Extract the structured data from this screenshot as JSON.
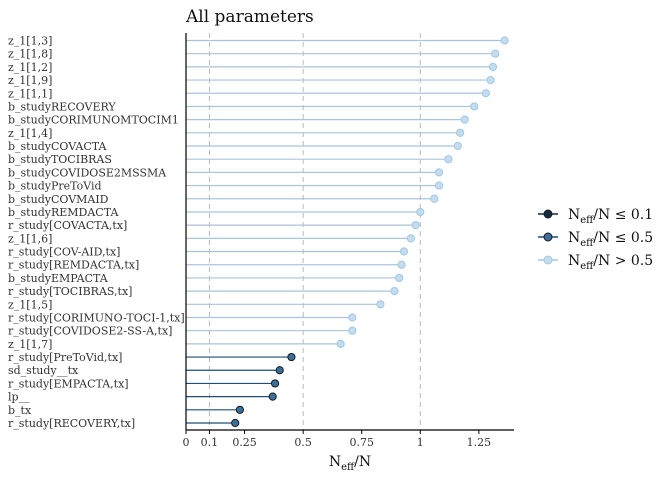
{
  "chart_data": {
    "type": "lollipop",
    "title": "All parameters",
    "xlabel": {
      "main": "N",
      "sub": "eff",
      "tail": "/N"
    },
    "xlim": [
      0,
      1.4
    ],
    "x_ticks": [
      0,
      0.1,
      0.25,
      0.5,
      0.75,
      1,
      1.25
    ],
    "x_tick_labels": [
      "0",
      "0.1",
      "0.25",
      "0.5",
      "0.75",
      "1",
      "1.25"
    ],
    "reference_lines": [
      0.1,
      0.5,
      1
    ],
    "legend": {
      "position": "right",
      "entries": [
        {
          "main": "N",
          "sub": "eff",
          "tail": "/N ≤ 0.1",
          "fill": "#132b43",
          "line": "#132b43"
        },
        {
          "main": "N",
          "sub": "eff",
          "tail": "/N ≤ 0.5",
          "fill": "#3a6e9c",
          "line": "#1f4e79"
        },
        {
          "main": "N",
          "sub": "eff",
          "tail": "/N > 0.5",
          "fill": "#c6dbef",
          "line": "#9ecae1"
        }
      ]
    },
    "colors": {
      "low": {
        "fill": "#132b43",
        "line": "#132b43"
      },
      "mid": {
        "fill": "#3a6e9c",
        "line": "#1f4e79"
      },
      "high": {
        "fill": "#c6dbef",
        "line": "#a9c4dd",
        "stroke": "#9ecae1"
      }
    },
    "parameters": [
      {
        "name": "z_1[1,3]",
        "value": 1.36,
        "group": "high"
      },
      {
        "name": "z_1[1,8]",
        "value": 1.32,
        "group": "high"
      },
      {
        "name": "z_1[1,2]",
        "value": 1.31,
        "group": "high"
      },
      {
        "name": "z_1[1,9]",
        "value": 1.3,
        "group": "high"
      },
      {
        "name": "z_1[1,1]",
        "value": 1.28,
        "group": "high"
      },
      {
        "name": "b_studyRECOVERY",
        "value": 1.23,
        "group": "high"
      },
      {
        "name": "b_studyCORIMUNOMTOCIM1",
        "value": 1.19,
        "group": "high"
      },
      {
        "name": "z_1[1,4]",
        "value": 1.17,
        "group": "high"
      },
      {
        "name": "b_studyCOVACTA",
        "value": 1.16,
        "group": "high"
      },
      {
        "name": "b_studyTOCIBRAS",
        "value": 1.12,
        "group": "high"
      },
      {
        "name": "b_studyCOVIDOSE2MSSMA",
        "value": 1.08,
        "group": "high"
      },
      {
        "name": "b_studyPreToVid",
        "value": 1.08,
        "group": "high"
      },
      {
        "name": "b_studyCOVMAID",
        "value": 1.06,
        "group": "high"
      },
      {
        "name": "b_studyREMDACTA",
        "value": 1.0,
        "group": "high"
      },
      {
        "name": "r_study[COVACTA,tx]",
        "value": 0.98,
        "group": "high"
      },
      {
        "name": "z_1[1,6]",
        "value": 0.96,
        "group": "high"
      },
      {
        "name": "r_study[COV-AID,tx]",
        "value": 0.93,
        "group": "high"
      },
      {
        "name": "r_study[REMDACTA,tx]",
        "value": 0.92,
        "group": "high"
      },
      {
        "name": "b_studyEMPACTA",
        "value": 0.91,
        "group": "high"
      },
      {
        "name": "r_study[TOCIBRAS,tx]",
        "value": 0.89,
        "group": "high"
      },
      {
        "name": "z_1[1,5]",
        "value": 0.83,
        "group": "high"
      },
      {
        "name": "r_study[CORIMUNO-TOCI-1,tx]",
        "value": 0.71,
        "group": "high"
      },
      {
        "name": "r_study[COVIDOSE2-SS-A,tx]",
        "value": 0.71,
        "group": "high"
      },
      {
        "name": "z_1[1,7]",
        "value": 0.66,
        "group": "high"
      },
      {
        "name": "r_study[PreToVid,tx]",
        "value": 0.45,
        "group": "mid"
      },
      {
        "name": "sd_study__tx",
        "value": 0.4,
        "group": "mid"
      },
      {
        "name": "r_study[EMPACTA,tx]",
        "value": 0.38,
        "group": "mid"
      },
      {
        "name": "lp__",
        "value": 0.37,
        "group": "mid"
      },
      {
        "name": "b_tx",
        "value": 0.23,
        "group": "mid"
      },
      {
        "name": "r_study[RECOVERY,tx]",
        "value": 0.21,
        "group": "mid"
      }
    ]
  }
}
